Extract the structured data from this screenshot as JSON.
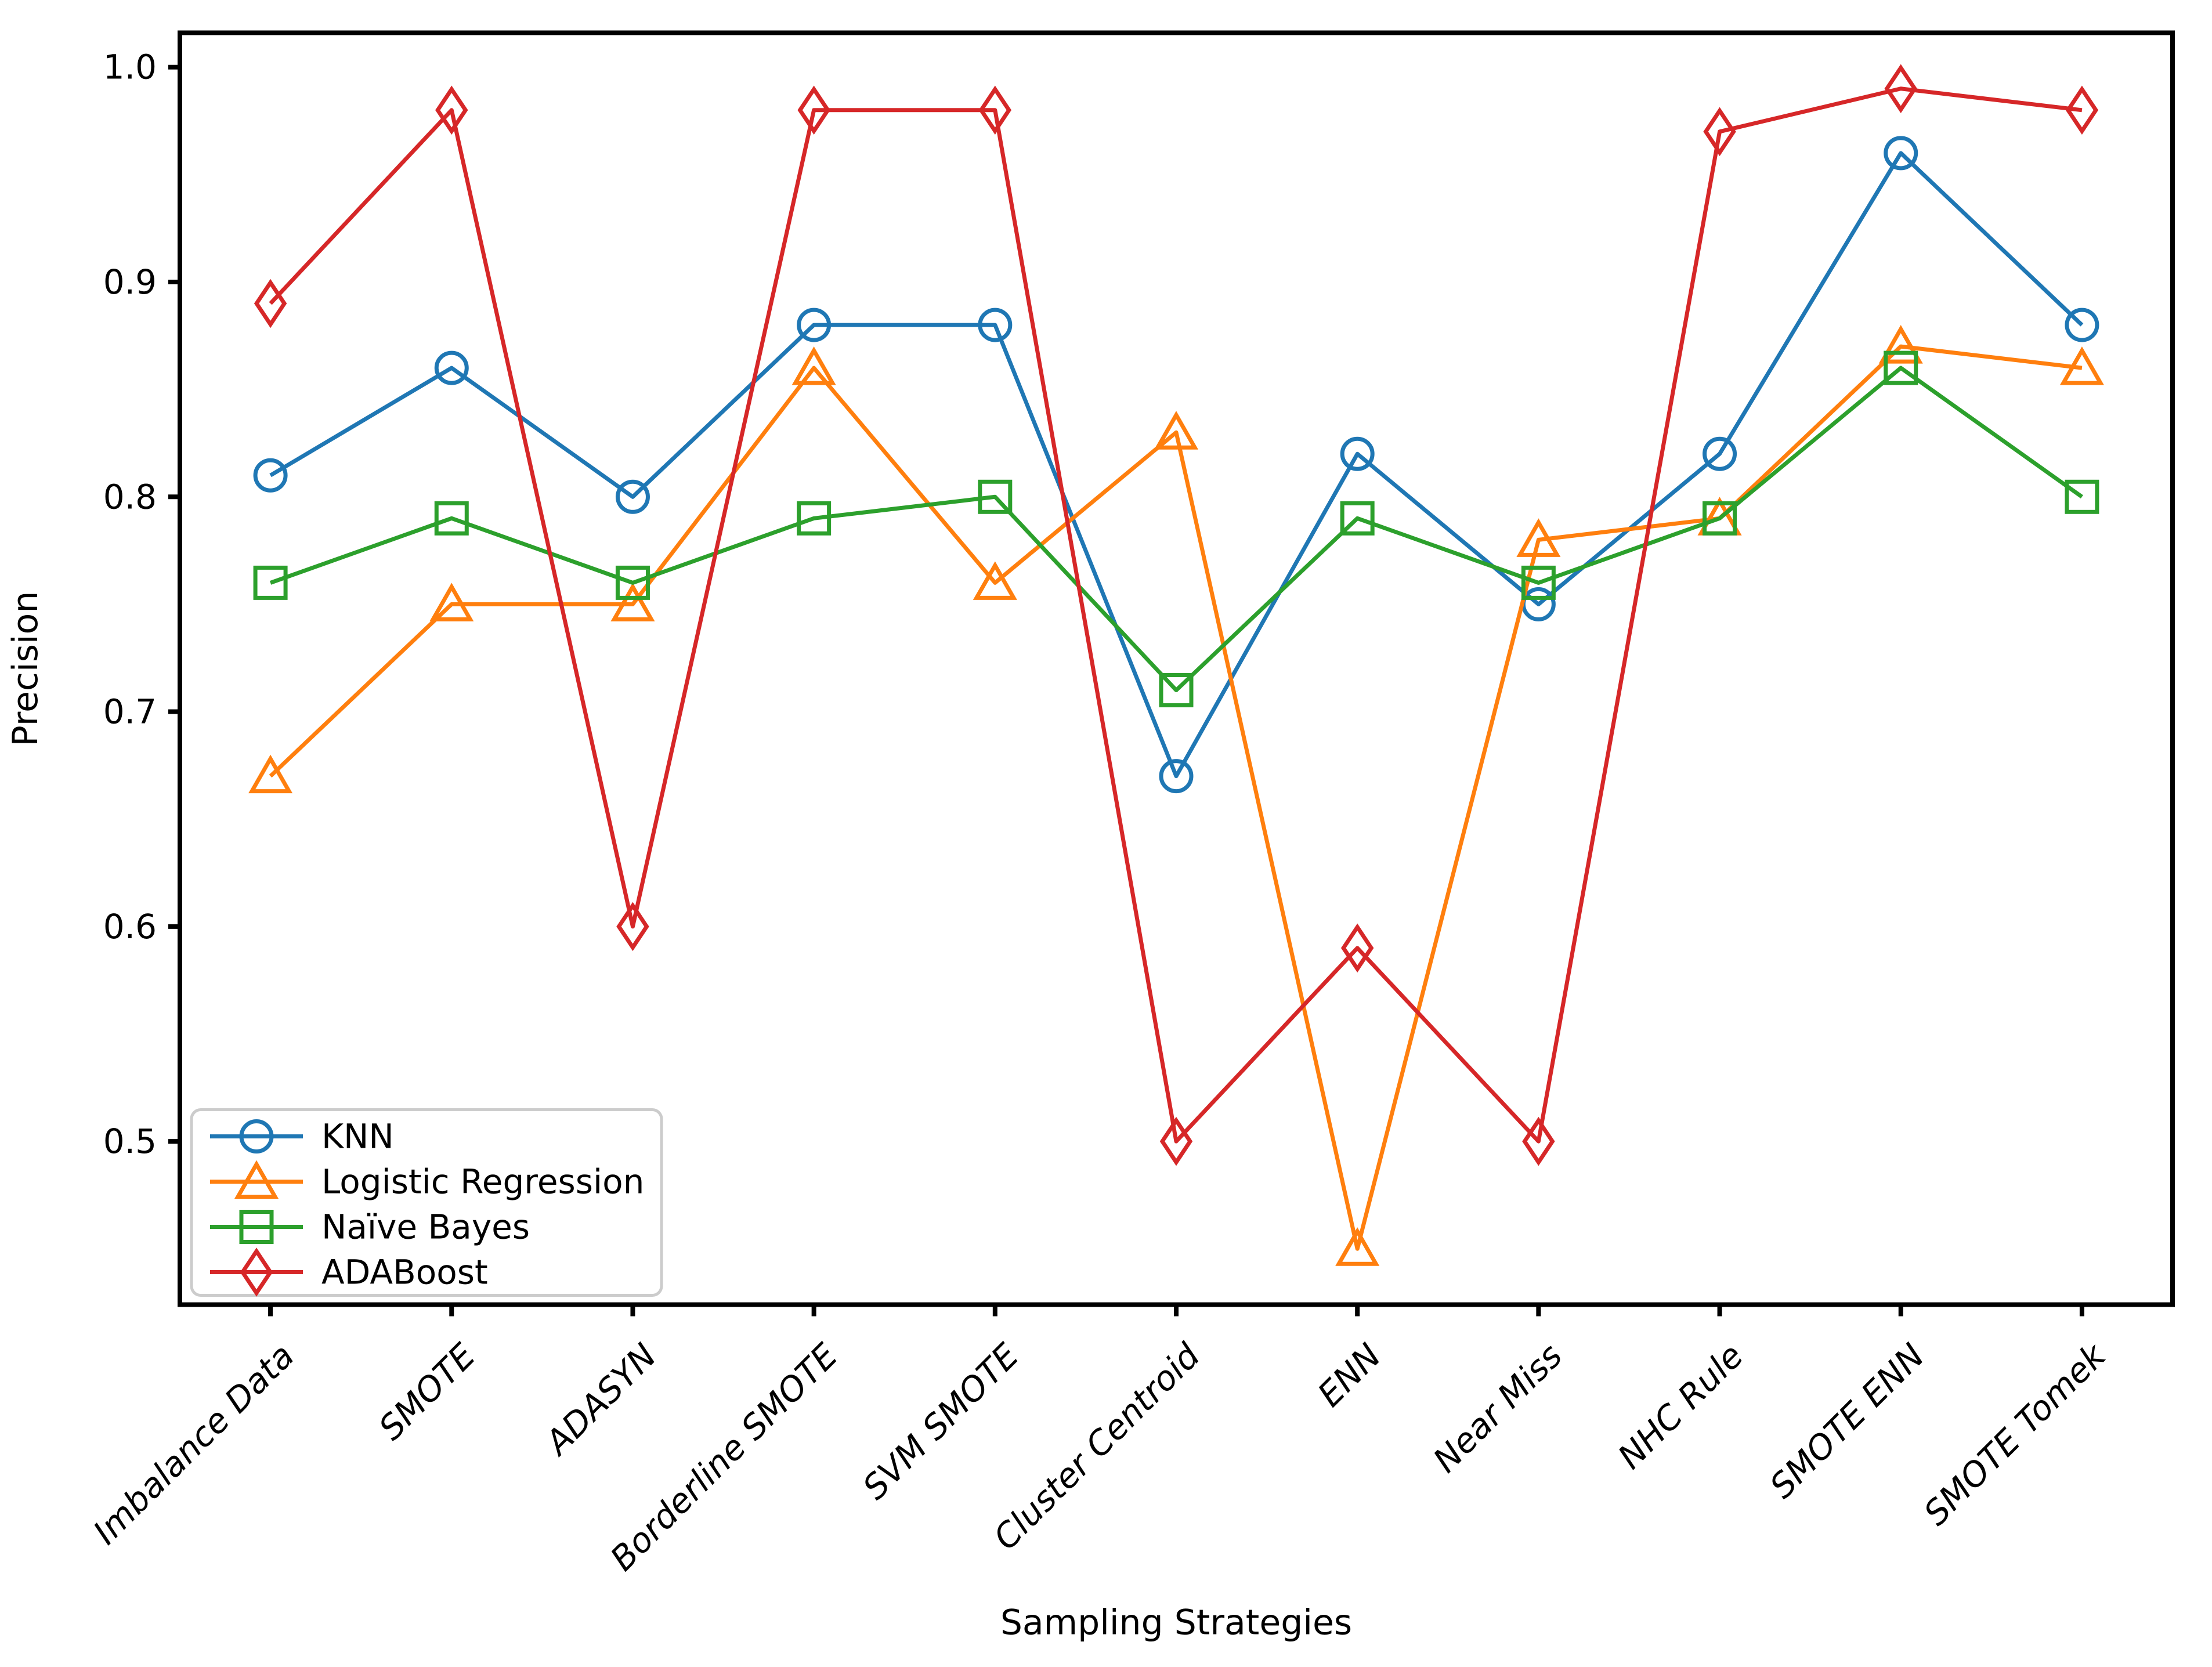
{
  "chart_data": {
    "type": "line",
    "title": "",
    "xlabel": "Sampling Strategies",
    "ylabel": "Precision",
    "categories": [
      "Imbalance Data",
      "SMOTE",
      "ADASYN",
      "Borderline SMOTE",
      "SVM SMOTE",
      "Cluster Centroid",
      "ENN",
      "Near Miss",
      "NHC Rule",
      "SMOTE ENN",
      "SMOTE Tomek"
    ],
    "series": [
      {
        "name": "KNN",
        "color": "#1f77b4",
        "marker": "circle",
        "values": [
          0.81,
          0.86,
          0.8,
          0.88,
          0.88,
          0.67,
          0.82,
          0.75,
          0.82,
          0.96,
          0.88
        ]
      },
      {
        "name": "Logistic Regression",
        "color": "#ff7f0e",
        "marker": "triangle",
        "values": [
          0.67,
          0.75,
          0.75,
          0.86,
          0.76,
          0.83,
          0.45,
          0.78,
          0.79,
          0.87,
          0.86
        ]
      },
      {
        "name": "Naïve Bayes",
        "color": "#2ca02c",
        "marker": "square",
        "values": [
          0.76,
          0.79,
          0.76,
          0.79,
          0.8,
          0.71,
          0.79,
          0.76,
          0.79,
          0.86,
          0.8
        ]
      },
      {
        "name": "ADABoost",
        "color": "#d62728",
        "marker": "diamond",
        "values": [
          0.89,
          0.98,
          0.6,
          0.98,
          0.98,
          0.5,
          0.59,
          0.5,
          0.97,
          0.99,
          0.98
        ]
      }
    ],
    "y_ticks": [
      0.5,
      0.6,
      0.7,
      0.8,
      0.9,
      1.0
    ],
    "y_tick_labels": [
      "0.5",
      "0.6",
      "0.7",
      "0.8",
      "0.9",
      "1.0"
    ],
    "ylim": [
      0.424,
      1.016
    ],
    "grid": false,
    "legend_position": "lower left",
    "marker_fill": "none",
    "axis_color": "#000000",
    "background": "#ffffff"
  }
}
